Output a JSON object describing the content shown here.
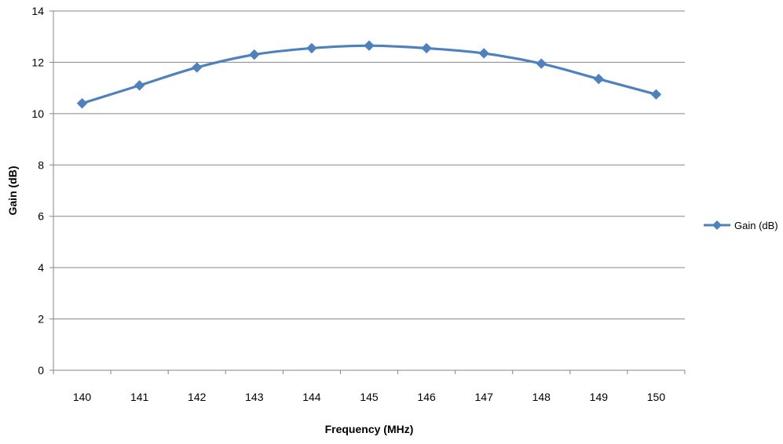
{
  "chart_data": {
    "type": "line",
    "title": "",
    "xlabel": "Frequency (MHz)",
    "ylabel": "Gain (dB)",
    "x": [
      140,
      141,
      142,
      143,
      144,
      145,
      146,
      147,
      148,
      149,
      150
    ],
    "series": [
      {
        "name": "Gain (dB)",
        "values": [
          10.4,
          11.1,
          11.8,
          12.3,
          12.55,
          12.65,
          12.55,
          12.35,
          11.95,
          11.35,
          10.75
        ],
        "color": "#4F81BD",
        "marker": "diamond"
      }
    ],
    "ylim": [
      0,
      14
    ],
    "yticks": [
      0,
      2,
      4,
      6,
      8,
      10,
      12,
      14
    ],
    "xticks": [
      "140",
      "141",
      "142",
      "143",
      "144",
      "145",
      "146",
      "147",
      "148",
      "149",
      "150"
    ],
    "grid": true,
    "legend_position": "right",
    "gridline_color": "#868686"
  }
}
